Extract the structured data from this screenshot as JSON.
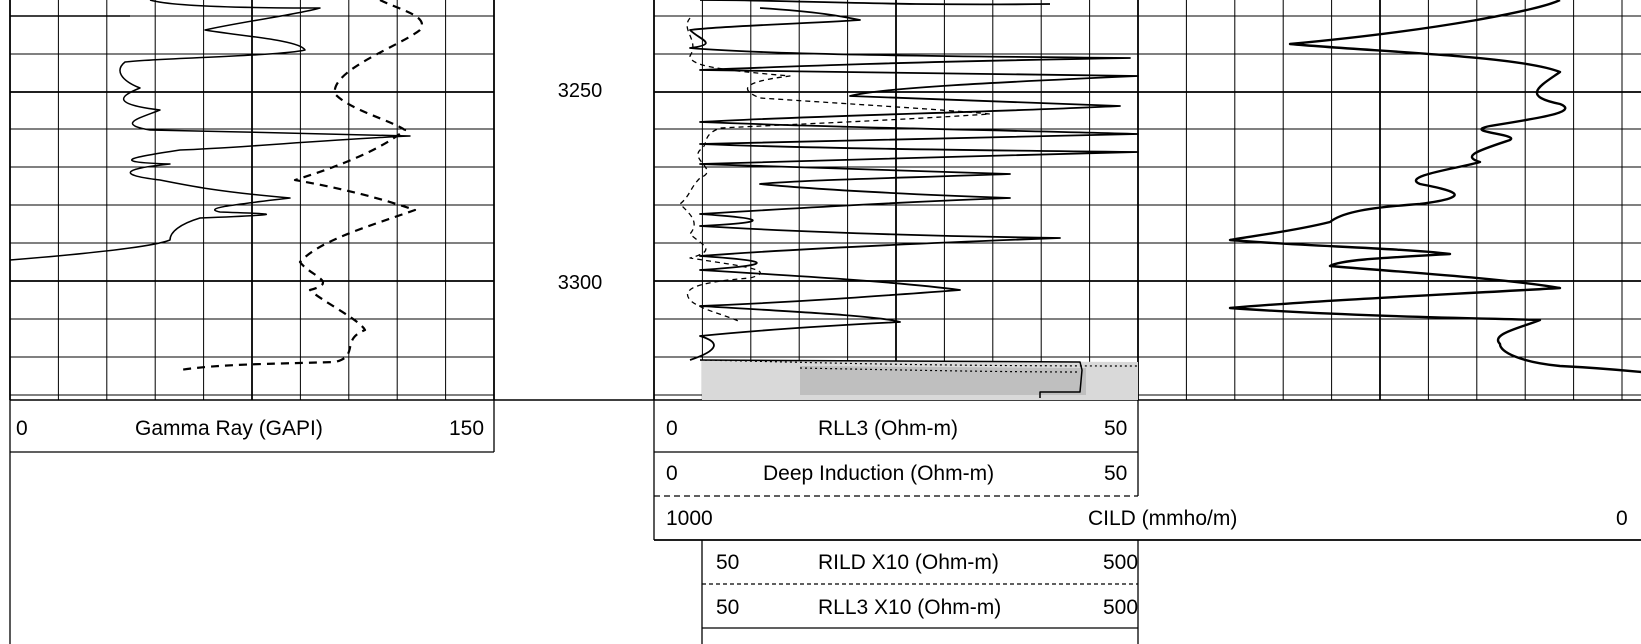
{
  "depth_track": {
    "labels": [
      "3250",
      "3300"
    ]
  },
  "headers": {
    "gamma_ray": {
      "min": "0",
      "name": "Gamma Ray (GAPI)",
      "max": "150"
    },
    "rll3": {
      "min": "0",
      "name": "RLL3 (Ohm-m)",
      "max": "50"
    },
    "deep_induction": {
      "min": "0",
      "name": "Deep Induction (Ohm-m)",
      "max": "50"
    },
    "cild": {
      "min": "1000",
      "name": "CILD (mmho/m)",
      "max": "0"
    },
    "rild_x10": {
      "min": "50",
      "name": "RILD X10 (Ohm-m)",
      "max": "500"
    },
    "rll3_x10": {
      "min": "50",
      "name": "RLL3 X10 (Ohm-m)",
      "max": "500"
    }
  },
  "colors": {
    "grid": "#000000",
    "fill": "#d9d9d9",
    "curve": "#000000"
  }
}
